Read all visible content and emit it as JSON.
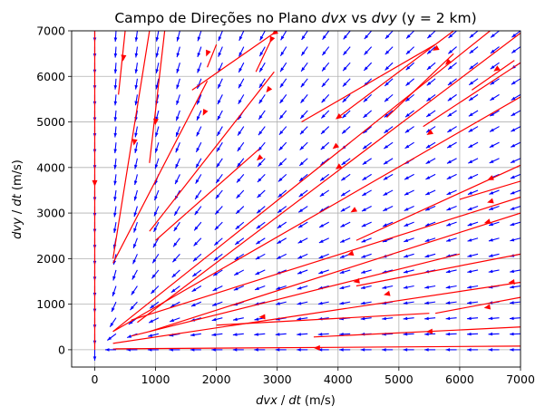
{
  "chart_data": {
    "type": "quiver",
    "title": "Campo de Direções no Plano dvx vs dvy (y = 2 km)",
    "title_parts": [
      "Campo de Direções no Plano ",
      "dvx",
      " vs ",
      "dvy",
      " (y = 2 km)"
    ],
    "xlabel_parts": [
      "dvx",
      " / ",
      "dt",
      " (m/s)"
    ],
    "ylabel_parts": [
      "dvy",
      " / ",
      "dt",
      " (m/s)"
    ],
    "xlim": [
      -380,
      7000
    ],
    "ylim": [
      -380,
      7000
    ],
    "xticks": [
      0,
      1000,
      2000,
      3000,
      4000,
      5000,
      6000,
      7000
    ],
    "yticks": [
      0,
      1000,
      2000,
      3000,
      4000,
      5000,
      6000,
      7000
    ],
    "xtick_labels": [
      "0",
      "1000",
      "2000",
      "3000",
      "4000",
      "5000",
      "6000",
      "7000"
    ],
    "ytick_labels": [
      "0",
      "1000",
      "2000",
      "3000",
      "4000",
      "5000",
      "6000",
      "7000"
    ],
    "grid": true,
    "field": {
      "color": "#0000ff",
      "description_of_flow": "vectors point toward the origin along rays",
      "x_start": 0,
      "x_step": 350,
      "x_count": 21,
      "y_start": 0,
      "y_step": 350,
      "y_count": 21
    },
    "trajectories": {
      "color": "#ff0000",
      "curves": [
        {
          "from": [
            7000,
            80
          ],
          "to": [
            300,
            20
          ],
          "arrow": [
            3650,
            40
          ]
        },
        {
          "from": [
            7000,
            500
          ],
          "to": [
            3600,
            280
          ],
          "arrow": [
            5500,
            400
          ]
        },
        {
          "from": [
            5500,
            800
          ],
          "to": [
            2000,
            540
          ],
          "arrow": [
            2750,
            720
          ]
        },
        {
          "from": [
            7000,
            1480
          ],
          "to": [
            300,
            140
          ],
          "arrow": [
            6850,
            1480
          ]
        },
        {
          "from": [
            7000,
            1150
          ],
          "to": [
            5600,
            800
          ],
          "arrow": [
            6450,
            930
          ]
        },
        {
          "from": [
            6000,
            2100
          ],
          "to": [
            600,
            300
          ],
          "arrow": [
            4800,
            1220
          ]
        },
        {
          "from": [
            7000,
            2100
          ],
          "to": [
            4300,
            1400
          ],
          "arrow": [
            4300,
            1500
          ]
        },
        {
          "from": [
            7000,
            3000
          ],
          "to": [
            900,
            400
          ],
          "arrow": [
            4200,
            2100
          ]
        },
        {
          "from": [
            7000,
            3350
          ],
          "to": [
            600,
            650
          ],
          "arrow": [
            6450,
            2800
          ]
        },
        {
          "from": [
            7000,
            3700
          ],
          "to": [
            6000,
            3300
          ],
          "arrow": [
            6500,
            3250
          ]
        },
        {
          "from": [
            7000,
            4050
          ],
          "to": [
            4300,
            2400
          ],
          "arrow": [
            6500,
            3750
          ]
        },
        {
          "from": [
            7000,
            5550
          ],
          "to": [
            300,
            400
          ],
          "arrow": [
            4250,
            3050
          ]
        },
        {
          "from": [
            7000,
            6950
          ],
          "to": [
            700,
            600
          ],
          "arrow": [
            4000,
            4000
          ]
        },
        {
          "from": [
            7000,
            6300
          ],
          "to": [
            5400,
            4900
          ],
          "arrow": [
            5500,
            4750
          ]
        },
        {
          "from": [
            6500,
            7000
          ],
          "to": [
            300,
            400
          ],
          "arrow": [
            3950,
            4450
          ]
        },
        {
          "from": [
            5900,
            7000
          ],
          "to": [
            4000,
            5100
          ],
          "arrow": [
            4000,
            5100
          ]
        },
        {
          "from": [
            5600,
            6700
          ],
          "to": [
            3400,
            5000
          ],
          "arrow": [
            5600,
            6600
          ]
        },
        {
          "from": [
            5900,
            6500
          ],
          "to": [
            4800,
            5100
          ],
          "arrow": [
            5800,
            6300
          ]
        },
        {
          "from": [
            6900,
            6350
          ],
          "to": [
            6200,
            5700
          ],
          "arrow": [
            6600,
            6150
          ]
        },
        {
          "from": [
            3000,
            7000
          ],
          "to": [
            1600,
            5700
          ],
          "arrow": [
            2950,
            6950
          ]
        },
        {
          "from": [
            2900,
            6800
          ],
          "to": [
            2650,
            6100
          ],
          "arrow": [
            2900,
            6800
          ]
        },
        {
          "from": [
            2950,
            6100
          ],
          "to": [
            900,
            2600
          ],
          "arrow": [
            2850,
            5700
          ]
        },
        {
          "from": [
            2000,
            6700
          ],
          "to": [
            1850,
            6200
          ],
          "arrow": [
            1850,
            6500
          ]
        },
        {
          "from": [
            2700,
            4400
          ],
          "to": [
            1000,
            2400
          ],
          "arrow": [
            2700,
            4200
          ]
        },
        {
          "from": [
            1850,
            5900
          ],
          "to": [
            300,
            1900
          ],
          "arrow": [
            1800,
            5200
          ]
        },
        {
          "from": [
            1150,
            7000
          ],
          "to": [
            900,
            4100
          ],
          "arrow": [
            1000,
            5000
          ]
        },
        {
          "from": [
            900,
            7000
          ],
          "to": [
            300,
            2000
          ],
          "arrow": [
            650,
            4550
          ]
        },
        {
          "from": [
            500,
            7000
          ],
          "to": [
            390,
            5600
          ],
          "arrow": [
            470,
            6400
          ]
        },
        {
          "from": [
            0,
            7000
          ],
          "to": [
            0,
            0
          ],
          "arrow": [
            0,
            3650
          ]
        }
      ]
    }
  }
}
